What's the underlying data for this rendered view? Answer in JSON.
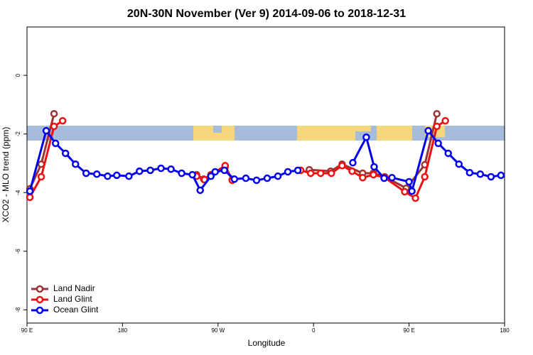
{
  "chart_data": {
    "type": "line",
    "title": "20N-30N November (Ver 9)   2014-09-06 to 2018-12-31",
    "x_label": "Longitude",
    "y_label": "XCO2 - MLO trend (ppm)",
    "xlim": [
      90,
      540
    ],
    "xticks": [
      {
        "value": 90,
        "label": "90 E"
      },
      {
        "value": 180,
        "label": "180"
      },
      {
        "value": 270,
        "label": "90 W"
      },
      {
        "value": 360,
        "label": "0"
      },
      {
        "value": 450,
        "label": "90 E"
      },
      {
        "value": 540,
        "label": "180"
      }
    ],
    "ylim": [
      -8.45,
      1.65
    ],
    "yticks": [
      0,
      -2,
      -4,
      -6,
      -8
    ],
    "legend": "bottomleft",
    "series": [
      {
        "name": "Land Nadir",
        "color": "#9e3333",
        "x": [
          92.7,
          103.4,
          115.5,
          null,
          249.8,
          256.5,
          263.3,
          276.7,
          283.4,
          null,
          356,
          376.1,
          386.9,
          406.3,
          416.4,
          427.1,
          447.3,
          464.8,
          476.2
        ],
        "values": [
          -3.87,
          -3.03,
          -1.31,
          null,
          -3.39,
          -3.54,
          -3.39,
          -3.12,
          -3.56,
          null,
          -3.22,
          -3.27,
          -3.03,
          -3.34,
          -3.34,
          -3.46,
          -3.85,
          -3.05,
          -1.31
        ]
      },
      {
        "name": "Land Glint",
        "color": "#ee1111",
        "x": [
          92.7,
          103.4,
          115.5,
          123.6,
          null,
          249.8,
          257.2,
          263.3,
          276.7,
          283.4,
          null,
          347.9,
          357.3,
          366.7,
          376.8,
          386.9,
          396.3,
          406.3,
          416.4,
          427.1,
          445.9,
          456,
          464.8,
          476.2,
          484.2
        ],
        "values": [
          -4.16,
          -3.46,
          -1.74,
          -1.55,
          null,
          -3.44,
          -3.56,
          -3.39,
          -3.08,
          -3.58,
          null,
          -3.24,
          -3.34,
          -3.34,
          -3.34,
          -3.08,
          -3.27,
          -3.49,
          -3.39,
          -3.49,
          -3.97,
          -4.19,
          -3.46,
          -1.74,
          -1.55
        ]
      },
      {
        "name": "Ocean Glint",
        "color": "#0000ee",
        "x": [
          92.7,
          108.1,
          116.9,
          126.3,
          135.7,
          145.7,
          155.8,
          165.9,
          174.6,
          186,
          196,
          206.2,
          216.3,
          225.7,
          235.7,
          245.8,
          253.2,
          263.3,
          267.3,
          276,
          285.4,
          296.2,
          306.3,
          316.3,
          326.4,
          335.8,
          345.2,
          null,
          397,
          409.7,
          417.1,
          426.5,
          433.9,
          450,
          452.7,
          468.1,
          477.5,
          486.9,
          497,
          507.1,
          517.1,
          527.2,
          536.6
        ],
        "values": [
          -3.95,
          -1.89,
          -2.32,
          -2.66,
          -3.03,
          -3.34,
          -3.37,
          -3.44,
          -3.41,
          -3.44,
          -3.27,
          -3.24,
          -3.17,
          -3.2,
          -3.34,
          -3.39,
          -3.92,
          -3.44,
          -3.29,
          -3.24,
          -3.54,
          -3.51,
          -3.58,
          -3.51,
          -3.44,
          -3.29,
          -3.24,
          null,
          -2.98,
          -2.11,
          -3.12,
          -3.51,
          -3.49,
          -3.63,
          -3.95,
          -1.89,
          -2.32,
          -2.66,
          -3.03,
          -3.32,
          -3.37,
          -3.46,
          -3.41
        ]
      }
    ]
  }
}
